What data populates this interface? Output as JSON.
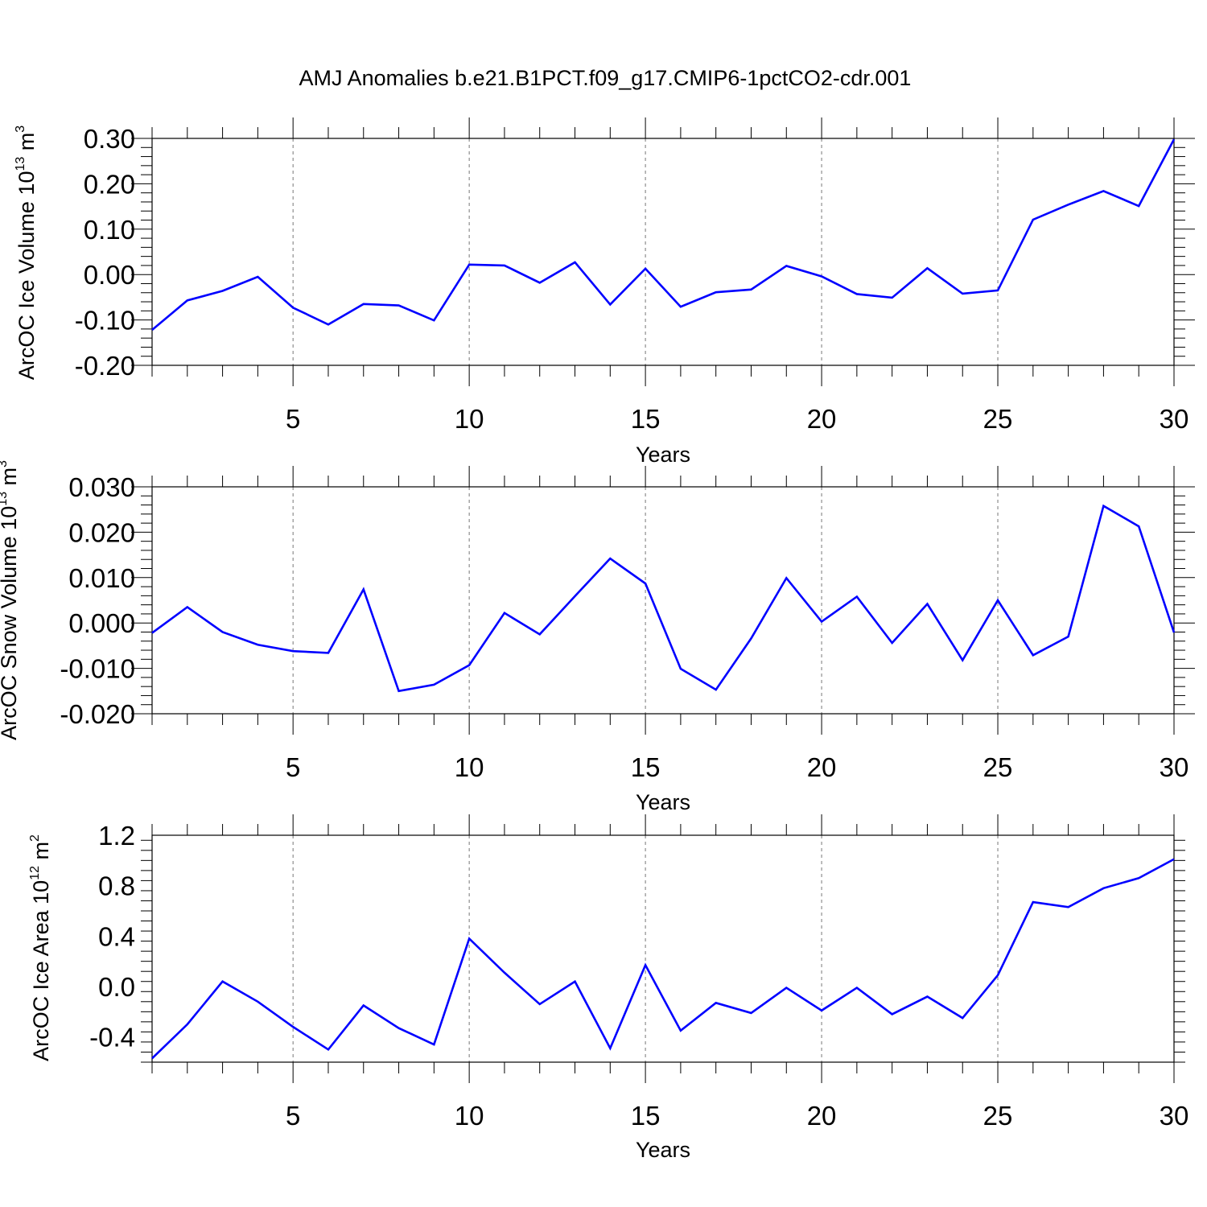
{
  "figure": {
    "title": "AMJ Anomalies b.e21.B1PCT.f09_g17.CMIP6-1pctCO2-cdr.001"
  },
  "chart_data": [
    {
      "type": "line",
      "xlabel": "Years",
      "ylabel": {
        "text": "ArcOC Ice Volume 10",
        "sup1": "13",
        "mid": " m",
        "sup2": "3"
      },
      "xlim": [
        1,
        30
      ],
      "ylim": [
        -0.2,
        0.3
      ],
      "x_ticks": [
        5,
        10,
        15,
        20,
        25,
        30
      ],
      "x_tick_labels": [
        "5",
        "10",
        "15",
        "20",
        "25",
        "30"
      ],
      "y_ticks": [
        -0.2,
        -0.1,
        0.0,
        0.1,
        0.2,
        0.3
      ],
      "y_tick_labels": [
        "-0.20",
        "-0.10",
        "0.00",
        "0.10",
        "0.20",
        "0.30"
      ],
      "grid": "dashed vertical at major x ticks",
      "line_color": "#0000ff",
      "x": [
        1,
        2,
        3,
        4,
        5,
        6,
        7,
        8,
        9,
        10,
        11,
        12,
        13,
        14,
        15,
        16,
        17,
        18,
        19,
        20,
        21,
        22,
        23,
        24,
        25,
        26,
        27,
        28,
        29,
        30
      ],
      "values": [
        -0.122,
        -0.057,
        -0.036,
        -0.005,
        -0.073,
        -0.11,
        -0.065,
        -0.068,
        -0.101,
        0.022,
        0.02,
        -0.018,
        0.027,
        -0.066,
        0.013,
        -0.071,
        -0.039,
        -0.033,
        0.019,
        -0.004,
        -0.043,
        -0.051,
        0.014,
        -0.042,
        -0.035,
        0.121,
        0.154,
        0.184,
        0.151,
        0.298
      ]
    },
    {
      "type": "line",
      "xlabel": "Years",
      "ylabel": {
        "text": "ArcOC Snow Volume 10",
        "sup1": "13",
        "mid": " m",
        "sup2": "3"
      },
      "xlim": [
        1,
        30
      ],
      "ylim": [
        -0.02,
        0.03
      ],
      "x_ticks": [
        5,
        10,
        15,
        20,
        25,
        30
      ],
      "x_tick_labels": [
        "5",
        "10",
        "15",
        "20",
        "25",
        "30"
      ],
      "y_ticks": [
        -0.02,
        -0.01,
        0.0,
        0.01,
        0.02,
        0.03
      ],
      "y_tick_labels": [
        "-0.020",
        "-0.010",
        "0.000",
        "0.010",
        "0.020",
        "0.030"
      ],
      "grid": "dashed vertical at major x ticks",
      "line_color": "#0000ff",
      "x": [
        1,
        2,
        3,
        4,
        5,
        6,
        7,
        8,
        9,
        10,
        11,
        12,
        13,
        14,
        15,
        16,
        17,
        18,
        19,
        20,
        21,
        22,
        23,
        24,
        25,
        26,
        27,
        28,
        29,
        30
      ],
      "values": [
        -0.0022,
        0.0035,
        -0.002,
        -0.0048,
        -0.0062,
        -0.0066,
        0.0074,
        -0.015,
        -0.0136,
        -0.0093,
        0.0022,
        -0.0025,
        0.0059,
        0.0142,
        0.0087,
        -0.0101,
        -0.0147,
        -0.0034,
        0.0099,
        0.0003,
        0.0058,
        -0.0044,
        0.0042,
        -0.0082,
        0.005,
        -0.0071,
        -0.003,
        0.0258,
        0.0213,
        -0.0021
      ]
    },
    {
      "type": "line",
      "xlabel": "Years",
      "ylabel": {
        "text": "ArcOC Ice Area 10",
        "sup1": "12",
        "mid": " m",
        "sup2": "2"
      },
      "xlim": [
        1,
        30
      ],
      "ylim": [
        -0.6,
        1.2
      ],
      "x_ticks": [
        5,
        10,
        15,
        20,
        25,
        30
      ],
      "x_tick_labels": [
        "5",
        "10",
        "15",
        "20",
        "25",
        "30"
      ],
      "y_ticks": [
        -0.4,
        0.0,
        0.4,
        0.8,
        1.2
      ],
      "y_tick_labels": [
        "-0.4",
        "0.0",
        "0.4",
        "0.8",
        "1.2"
      ],
      "grid": "dashed vertical at major x ticks",
      "line_color": "#0000ff",
      "x": [
        1,
        2,
        3,
        4,
        5,
        6,
        7,
        8,
        9,
        10,
        11,
        12,
        13,
        14,
        15,
        16,
        17,
        18,
        19,
        20,
        21,
        22,
        23,
        24,
        25,
        26,
        27,
        28,
        29,
        30
      ],
      "values": [
        -0.57,
        -0.3,
        0.04,
        -0.12,
        -0.32,
        -0.5,
        -0.15,
        -0.33,
        -0.46,
        0.38,
        0.11,
        -0.14,
        0.04,
        -0.49,
        0.17,
        -0.35,
        -0.13,
        -0.21,
        -0.01,
        -0.19,
        -0.01,
        -0.22,
        -0.08,
        -0.25,
        0.09,
        0.67,
        0.63,
        0.78,
        0.86,
        1.01
      ]
    }
  ]
}
